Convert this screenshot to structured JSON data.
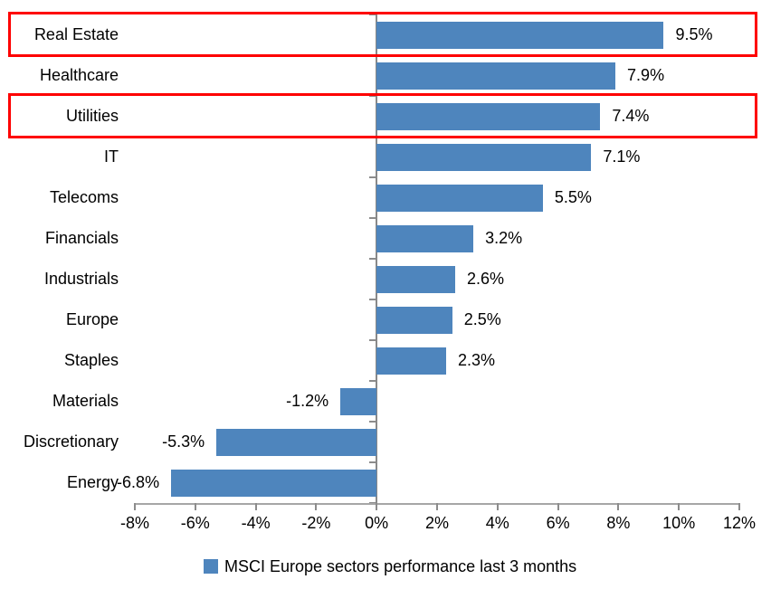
{
  "chart_data": {
    "type": "bar",
    "orientation": "horizontal",
    "title": "",
    "categories": [
      "Real Estate",
      "Healthcare",
      "Utilities",
      "IT",
      "Telecoms",
      "Financials",
      "Industrials",
      "Europe",
      "Staples",
      "Materials",
      "Discretionary",
      "Energy"
    ],
    "values": [
      9.5,
      7.9,
      7.4,
      7.1,
      5.5,
      3.2,
      2.6,
      2.5,
      2.3,
      -1.2,
      -5.3,
      -6.8
    ],
    "value_labels": [
      "9.5%",
      "7.9%",
      "7.4%",
      "7.1%",
      "5.5%",
      "3.2%",
      "2.6%",
      "2.5%",
      "2.3%",
      "-1.2%",
      "-5.3%",
      "-6.8%"
    ],
    "x_tick_labels": [
      "-8%",
      "-6%",
      "-4%",
      "-2%",
      "0%",
      "2%",
      "4%",
      "6%",
      "8%",
      "10%",
      "12%"
    ],
    "x_tick_values": [
      -8,
      -6,
      -4,
      -2,
      0,
      2,
      4,
      6,
      8,
      10,
      12
    ],
    "xlim": [
      -8,
      12
    ],
    "grid": false,
    "legend": "MSCI Europe sectors performance last 3 months",
    "legend_position": "bottom",
    "highlighted_categories": [
      "Real Estate",
      "Utilities"
    ]
  },
  "colors": {
    "bar": "#4e85bd",
    "highlight_box": "#fe0000",
    "value_axis_line": "#a6a6a6",
    "category_axis_line": "#898989",
    "tick": "#8c8c8c",
    "text": "#000000"
  }
}
